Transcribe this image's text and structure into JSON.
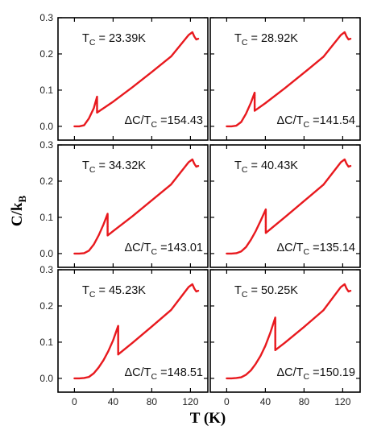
{
  "figure": {
    "ylabel_main": "C/k",
    "ylabel_sub": "B",
    "xlabel": "T (K)"
  },
  "axes": {
    "x_ticks": [
      "0",
      "40",
      "80",
      "120"
    ],
    "y_ticks": [
      "0.0",
      "0.1",
      "0.2",
      "0.3"
    ],
    "xlim": [
      -17,
      138
    ],
    "ylim": [
      -0.038,
      0.3
    ]
  },
  "colors": {
    "curve": "#e8191e",
    "frame": "#000000"
  },
  "chart_data": [
    {
      "type": "line",
      "tc_text": "23.39K",
      "ratio_text": "154.43",
      "tc": 23.39,
      "peak": 0.082,
      "drop": 0.038,
      "x": [
        0,
        5,
        10,
        15,
        20,
        23.39,
        23.39,
        40,
        60,
        80,
        100,
        118,
        122,
        124,
        126,
        128
      ],
      "y": [
        0.0,
        0.0,
        0.003,
        0.022,
        0.05,
        0.082,
        0.038,
        0.068,
        0.108,
        0.15,
        0.193,
        0.252,
        0.26,
        0.248,
        0.24,
        0.242
      ]
    },
    {
      "type": "line",
      "tc_text": "28.92K",
      "ratio_text": "141.54",
      "tc": 28.92,
      "peak": 0.093,
      "drop": 0.043,
      "x": [
        0,
        5,
        10,
        15,
        20,
        25,
        28.92,
        28.92,
        40,
        60,
        80,
        100,
        118,
        122,
        124,
        126,
        128
      ],
      "y": [
        0.0,
        0.0,
        0.002,
        0.012,
        0.035,
        0.065,
        0.093,
        0.043,
        0.064,
        0.105,
        0.148,
        0.192,
        0.252,
        0.26,
        0.248,
        0.24,
        0.242
      ]
    },
    {
      "type": "line",
      "tc_text": "34.32K",
      "ratio_text": "143.01",
      "tc": 34.32,
      "peak": 0.11,
      "drop": 0.05,
      "x": [
        0,
        5,
        10,
        15,
        20,
        25,
        30,
        34.32,
        34.32,
        40,
        60,
        80,
        100,
        118,
        122,
        124,
        126,
        128
      ],
      "y": [
        0.0,
        0.0,
        0.001,
        0.008,
        0.025,
        0.05,
        0.08,
        0.11,
        0.05,
        0.062,
        0.103,
        0.147,
        0.191,
        0.252,
        0.26,
        0.248,
        0.24,
        0.242
      ]
    },
    {
      "type": "line",
      "tc_text": "40.43K",
      "ratio_text": "135.14",
      "tc": 40.43,
      "peak": 0.122,
      "drop": 0.057,
      "x": [
        0,
        5,
        10,
        15,
        20,
        25,
        30,
        35,
        40.43,
        40.43,
        60,
        80,
        100,
        118,
        122,
        124,
        126,
        128
      ],
      "y": [
        0.0,
        0.0,
        0.001,
        0.006,
        0.018,
        0.038,
        0.062,
        0.09,
        0.122,
        0.057,
        0.1,
        0.145,
        0.19,
        0.252,
        0.26,
        0.248,
        0.24,
        0.242
      ]
    },
    {
      "type": "line",
      "tc_text": "45.23K",
      "ratio_text": "148.51",
      "tc": 45.23,
      "peak": 0.145,
      "drop": 0.066,
      "x": [
        0,
        5,
        10,
        15,
        20,
        25,
        30,
        35,
        40,
        45.23,
        45.23,
        60,
        80,
        100,
        118,
        122,
        124,
        126,
        128
      ],
      "y": [
        0.0,
        0.0,
        0.001,
        0.004,
        0.014,
        0.03,
        0.05,
        0.075,
        0.105,
        0.145,
        0.066,
        0.098,
        0.143,
        0.189,
        0.252,
        0.26,
        0.248,
        0.24,
        0.242
      ]
    },
    {
      "type": "line",
      "tc_text": "50.25K",
      "ratio_text": "150.19",
      "tc": 50.25,
      "peak": 0.168,
      "drop": 0.078,
      "x": [
        0,
        5,
        10,
        15,
        20,
        25,
        30,
        35,
        40,
        45,
        50.25,
        50.25,
        60,
        80,
        100,
        118,
        122,
        124,
        126,
        128
      ],
      "y": [
        0.0,
        0.0,
        0.001,
        0.003,
        0.01,
        0.022,
        0.04,
        0.062,
        0.09,
        0.125,
        0.168,
        0.078,
        0.098,
        0.142,
        0.188,
        0.252,
        0.26,
        0.248,
        0.24,
        0.242
      ]
    }
  ]
}
